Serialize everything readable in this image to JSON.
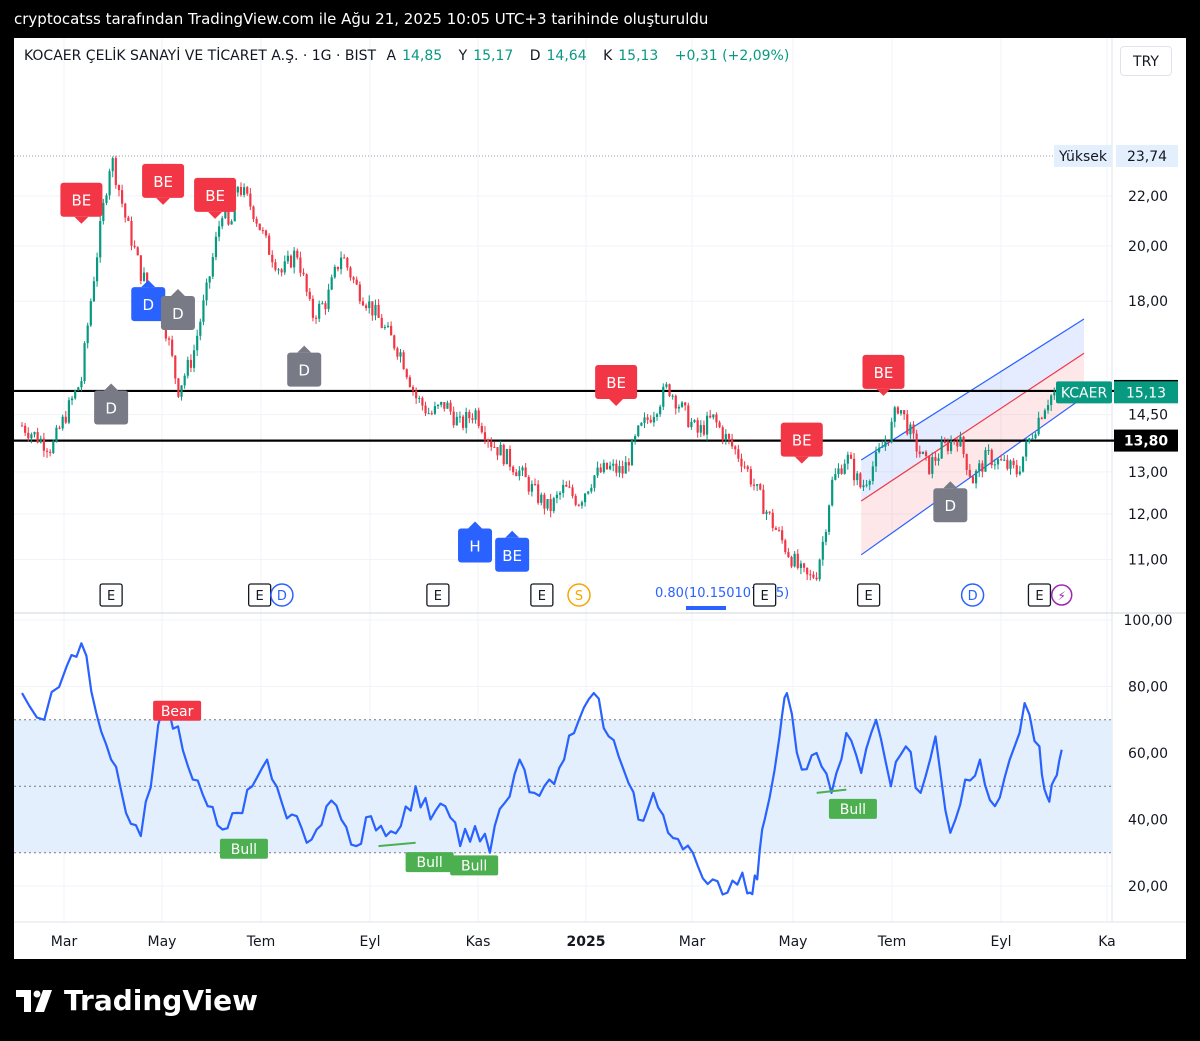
{
  "header": {
    "caption": "cryptocatss tarafından TradingView.com ile Ağu 21, 2025 10:05 UTC+3 tarihinde oluşturuldu"
  },
  "symbol_bar": {
    "name": "KOCAER ÇELİK SANAYİ VE TİCARET A.Ş. · 1G · BIST",
    "open_label": "A",
    "open": "14,85",
    "high_label": "Y",
    "high": "15,17",
    "low_label": "D",
    "low": "14,64",
    "close_label": "K",
    "close": "15,13",
    "change": "+0,31 (+2,09%)"
  },
  "currency": "TRY",
  "brand": "TradingView",
  "colors": {
    "up": "#089981",
    "down": "#f23645",
    "rsi_line": "#2962ff",
    "rsi_band": "#e3effd",
    "bear_marker": "#f23645",
    "bull_marker": "#4caf50",
    "hammer_marker": "#2962ff",
    "doji_marker": "#787b86",
    "last_price_tag": "#089981",
    "level_tag": "#000000"
  },
  "chart_data": [
    {
      "type": "candlestick",
      "title": "KOCAER ÇELİK SANAYİ VE TİCARET A.Ş. · 1G · BIST",
      "y_axis": {
        "ticks": [
          "22,00",
          "20,00",
          "18,00",
          "14,50",
          "13,00",
          "12,00",
          "11,00"
        ],
        "tick_values": [
          22,
          20,
          18,
          14.5,
          13,
          12,
          11
        ],
        "log_scale": true
      },
      "x_axis": {
        "ticks": [
          "Mar",
          "May",
          "Tem",
          "Eyl",
          "Kas",
          "2025",
          "Mar",
          "May",
          "Tem",
          "Eyl",
          "Ka"
        ]
      },
      "price_path": [
        [
          0,
          14.2
        ],
        [
          4,
          13.6
        ],
        [
          8,
          15.5
        ],
        [
          10,
          19.5
        ],
        [
          12,
          23.74
        ],
        [
          14,
          21.0
        ],
        [
          16,
          19.0
        ],
        [
          19,
          17.5
        ],
        [
          21,
          15.2
        ],
        [
          23,
          16.2
        ],
        [
          25,
          18.5
        ],
        [
          27,
          21.5
        ],
        [
          28,
          20.5
        ],
        [
          29,
          22.5
        ],
        [
          31,
          21.5
        ],
        [
          33,
          20.0
        ],
        [
          35,
          19.0
        ],
        [
          37,
          19.8
        ],
        [
          39,
          17.5
        ],
        [
          41,
          18.0
        ],
        [
          43,
          19.7
        ],
        [
          45,
          18.5
        ],
        [
          47,
          17.8
        ],
        [
          49,
          17.0
        ],
        [
          51,
          16.3
        ],
        [
          53,
          15.0
        ],
        [
          55,
          14.5
        ],
        [
          57,
          14.8
        ],
        [
          59,
          14.2
        ],
        [
          61,
          14.6
        ],
        [
          63,
          13.8
        ],
        [
          65,
          13.4
        ],
        [
          67,
          13.0
        ],
        [
          69,
          12.5
        ],
        [
          71,
          12.1
        ],
        [
          73,
          12.6
        ],
        [
          75,
          12.3
        ],
        [
          77,
          12.9
        ],
        [
          79,
          13.1
        ],
        [
          81,
          13.0
        ],
        [
          83,
          14.0
        ],
        [
          85,
          14.6
        ],
        [
          87,
          15.3
        ],
        [
          89,
          14.6
        ],
        [
          91,
          14.0
        ],
        [
          93,
          14.4
        ],
        [
          95,
          13.8
        ],
        [
          97,
          13.3
        ],
        [
          99,
          12.5
        ],
        [
          101,
          11.8
        ],
        [
          103,
          11.2
        ],
        [
          105,
          10.7
        ],
        [
          106,
          10.6
        ],
        [
          107,
          10.75
        ],
        [
          108,
          11.5
        ],
        [
          109,
          12.7
        ],
        [
          111,
          13.4
        ],
        [
          113,
          12.6
        ],
        [
          115,
          13.3
        ],
        [
          117,
          14.1
        ],
        [
          118,
          14.8
        ],
        [
          120,
          13.8
        ],
        [
          122,
          13.1
        ],
        [
          124,
          13.6
        ],
        [
          126,
          13.9
        ],
        [
          128,
          12.8
        ],
        [
          130,
          13.4
        ],
        [
          132,
          13.2
        ],
        [
          134,
          13.0
        ],
        [
          136,
          14.0
        ],
        [
          138,
          14.9
        ],
        [
          139,
          15.13
        ]
      ],
      "price_path_x_unit": "trading-week index",
      "levels": [
        {
          "value": "15,17"
        },
        {
          "value": "13,80"
        }
      ],
      "high_line": {
        "label": "Yüksek",
        "value": "23,74"
      },
      "last_price": {
        "label": "KCAER",
        "value": "15,13"
      },
      "fib_label": "0.80(10.150107205)",
      "channel": {
        "upper": [
          [
            113,
            13.3
          ],
          [
            143,
            17.4
          ]
        ],
        "mid": [
          [
            113,
            12.3
          ],
          [
            143,
            16.3
          ]
        ],
        "lower": [
          [
            113,
            11.1
          ],
          [
            143,
            15.0
          ]
        ]
      },
      "markers": [
        {
          "label": "BE",
          "kind": "bear",
          "x": 8,
          "price": 21.8
        },
        {
          "label": "BE",
          "kind": "bear",
          "x": 19,
          "price": 22.6
        },
        {
          "label": "BE",
          "kind": "bear",
          "x": 26,
          "price": 22.0
        },
        {
          "label": "D",
          "kind": "hammer",
          "x": 17,
          "price": 17.9
        },
        {
          "label": "D",
          "kind": "doji",
          "x": 21,
          "price": 17.6
        },
        {
          "label": "D",
          "kind": "doji",
          "x": 38,
          "price": 15.8
        },
        {
          "label": "D",
          "kind": "doji",
          "x": 12,
          "price": 14.7
        },
        {
          "label": "H",
          "kind": "hammer",
          "x": 61,
          "price": 11.3
        },
        {
          "label": "BE",
          "kind": "hammer",
          "x": 66,
          "price": 11.1
        },
        {
          "label": "BE",
          "kind": "bear",
          "x": 80,
          "price": 15.4
        },
        {
          "label": "BE",
          "kind": "bear",
          "x": 105,
          "price": 13.8
        },
        {
          "label": "BE",
          "kind": "bear",
          "x": 116,
          "price": 15.7
        },
        {
          "label": "D",
          "kind": "doji",
          "x": 125,
          "price": 12.2
        }
      ],
      "events": [
        {
          "label": "E",
          "x": 12
        },
        {
          "label": "E",
          "x": 32
        },
        {
          "label": "D",
          "x": 35
        },
        {
          "label": "E",
          "x": 56
        },
        {
          "label": "E",
          "x": 70
        },
        {
          "label": "S",
          "x": 75
        },
        {
          "label": "E",
          "x": 100
        },
        {
          "label": "E",
          "x": 114
        },
        {
          "label": "D",
          "x": 128
        },
        {
          "label": "E",
          "x": 137
        },
        {
          "label": "⚡",
          "x": 140
        }
      ]
    },
    {
      "type": "line",
      "title": "",
      "series": [
        {
          "points": [
            [
              0,
              78
            ],
            [
              3,
              70
            ],
            [
              6,
              86
            ],
            [
              8,
              93
            ],
            [
              10,
              72
            ],
            [
              12,
              58
            ],
            [
              14,
              42
            ],
            [
              16,
              35
            ],
            [
              18,
              62
            ],
            [
              19,
              73
            ],
            [
              21,
              68
            ],
            [
              23,
              52
            ],
            [
              25,
              44
            ],
            [
              27,
              37
            ],
            [
              29,
              42
            ],
            [
              31,
              50
            ],
            [
              33,
              58
            ],
            [
              35,
              45
            ],
            [
              37,
              41
            ],
            [
              39,
              34
            ],
            [
              41,
              44
            ],
            [
              43,
              40
            ],
            [
              45,
              32
            ],
            [
              47,
              41
            ],
            [
              49,
              35
            ],
            [
              51,
              38
            ],
            [
              53,
              50
            ],
            [
              55,
              40
            ],
            [
              57,
              44
            ],
            [
              59,
              32
            ],
            [
              61,
              38
            ],
            [
              63,
              30
            ],
            [
              65,
              45
            ],
            [
              67,
              58
            ],
            [
              69,
              48
            ],
            [
              71,
              52
            ],
            [
              73,
              58
            ],
            [
              75,
              70
            ],
            [
              77,
              78
            ],
            [
              79,
              65
            ],
            [
              81,
              55
            ],
            [
              83,
              40
            ],
            [
              85,
              48
            ],
            [
              87,
              36
            ],
            [
              89,
              31
            ],
            [
              91,
              26
            ],
            [
              93,
              22
            ],
            [
              95,
              18
            ],
            [
              97,
              24
            ],
            [
              98,
              18
            ],
            [
              99,
              22
            ],
            [
              100,
              40
            ],
            [
              102,
              65
            ],
            [
              103,
              78
            ],
            [
              105,
              55
            ],
            [
              107,
              60
            ],
            [
              109,
              48
            ],
            [
              111,
              66
            ],
            [
              113,
              54
            ],
            [
              115,
              70
            ],
            [
              117,
              50
            ],
            [
              119,
              62
            ],
            [
              121,
              48
            ],
            [
              123,
              65
            ],
            [
              125,
              36
            ],
            [
              127,
              52
            ],
            [
              129,
              58
            ],
            [
              131,
              44
            ],
            [
              133,
              58
            ],
            [
              135,
              75
            ],
            [
              137,
              62
            ],
            [
              138,
              47
            ],
            [
              139,
              52
            ],
            [
              140,
              61
            ]
          ]
        }
      ],
      "y_axis": {
        "ticks": [
          "100,00",
          "80,00",
          "60,00",
          "40,00",
          "20,00"
        ],
        "tick_values": [
          100,
          80,
          60,
          40,
          20
        ]
      },
      "bands": {
        "upper": 70,
        "middle": 50,
        "lower": 30
      },
      "labels": [
        {
          "text": "Bear",
          "kind": "bear",
          "x": 19,
          "value": 73
        },
        {
          "text": "Bull",
          "kind": "bull",
          "x": 28,
          "value": 36
        },
        {
          "text": "Bull",
          "kind": "bull",
          "x": 53,
          "value": 32
        },
        {
          "text": "Bull",
          "kind": "bull",
          "x": 59,
          "value": 31
        },
        {
          "text": "Bull",
          "kind": "bull",
          "x": 110,
          "value": 48
        }
      ]
    }
  ]
}
